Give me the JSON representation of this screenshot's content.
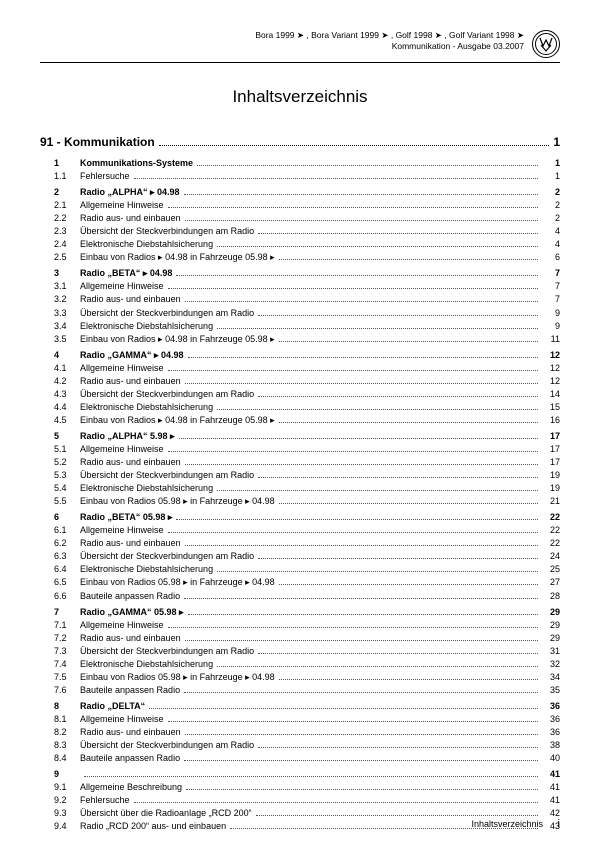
{
  "header": {
    "line1": "Bora 1999 ➤ , Bora Variant 1999 ➤ , Golf 1998 ➤ , Golf Variant 1998 ➤",
    "line2": "Kommunikation - Ausgabe 03.2007",
    "logo_text": "VW"
  },
  "title": "Inhaltsverzeichnis",
  "section": {
    "num": "91 -",
    "label": "Kommunikation",
    "page": "1"
  },
  "rows": [
    {
      "n": "1",
      "l": "Kommunikations-Systeme",
      "p": "1",
      "b": true
    },
    {
      "n": "1.1",
      "l": "Fehlersuche",
      "p": "1"
    },
    {
      "sp": true
    },
    {
      "n": "2",
      "l": "Radio „ALPHA“ ▸ 04.98",
      "p": "2",
      "b": true
    },
    {
      "n": "2.1",
      "l": "Allgemeine Hinweise",
      "p": "2"
    },
    {
      "n": "2.2",
      "l": "Radio aus- und einbauen",
      "p": "2"
    },
    {
      "n": "2.3",
      "l": "Übersicht der Steckverbindungen am Radio",
      "p": "4"
    },
    {
      "n": "2.4",
      "l": "Elektronische Diebstahlsicherung",
      "p": "4"
    },
    {
      "n": "2.5",
      "l": "Einbau von Radios ▸ 04.98 in Fahrzeuge 05.98 ▸",
      "p": "6"
    },
    {
      "sp": true
    },
    {
      "n": "3",
      "l": "Radio „BETA“ ▸ 04.98",
      "p": "7",
      "b": true
    },
    {
      "n": "3.1",
      "l": "Allgemeine Hinweise",
      "p": "7"
    },
    {
      "n": "3.2",
      "l": "Radio aus- und einbauen",
      "p": "7"
    },
    {
      "n": "3.3",
      "l": "Übersicht der Steckverbindungen am Radio",
      "p": "9"
    },
    {
      "n": "3.4",
      "l": "Elektronische Diebstahlsicherung",
      "p": "9"
    },
    {
      "n": "3.5",
      "l": "Einbau von Radios ▸ 04.98 in Fahrzeuge 05.98 ▸",
      "p": "11"
    },
    {
      "sp": true
    },
    {
      "n": "4",
      "l": "Radio „GAMMA“ ▸ 04.98",
      "p": "12",
      "b": true
    },
    {
      "n": "4.1",
      "l": "Allgemeine Hinweise",
      "p": "12"
    },
    {
      "n": "4.2",
      "l": "Radio aus- und einbauen",
      "p": "12"
    },
    {
      "n": "4.3",
      "l": "Übersicht der Steckverbindungen am Radio",
      "p": "14"
    },
    {
      "n": "4.4",
      "l": "Elektronische Diebstahlsicherung",
      "p": "15"
    },
    {
      "n": "4.5",
      "l": "Einbau von Radios ▸ 04.98 in Fahrzeuge 05.98 ▸",
      "p": "16"
    },
    {
      "sp": true
    },
    {
      "n": "5",
      "l": "Radio „ALPHA“ 5.98 ▸",
      "p": "17",
      "b": true
    },
    {
      "n": "5.1",
      "l": "Allgemeine Hinweise",
      "p": "17"
    },
    {
      "n": "5.2",
      "l": "Radio aus- und einbauen",
      "p": "17"
    },
    {
      "n": "5.3",
      "l": "Übersicht der Steckverbindungen am Radio",
      "p": "19"
    },
    {
      "n": "5.4",
      "l": "Elektronische Diebstahlsicherung",
      "p": "19"
    },
    {
      "n": "5.5",
      "l": "Einbau von Radios 05.98 ▸ in Fahrzeuge ▸ 04.98",
      "p": "21"
    },
    {
      "sp": true
    },
    {
      "n": "6",
      "l": "Radio „BETA“ 05.98 ▸",
      "p": "22",
      "b": true
    },
    {
      "n": "6.1",
      "l": "Allgemeine Hinweise",
      "p": "22"
    },
    {
      "n": "6.2",
      "l": "Radio aus- und einbauen",
      "p": "22"
    },
    {
      "n": "6.3",
      "l": "Übersicht der Steckverbindungen am Radio",
      "p": "24"
    },
    {
      "n": "6.4",
      "l": "Elektronische Diebstahlsicherung",
      "p": "25"
    },
    {
      "n": "6.5",
      "l": "Einbau von Radios 05.98 ▸ in Fahrzeuge ▸ 04.98",
      "p": "27"
    },
    {
      "n": "6.6",
      "l": "Bauteile anpassen Radio",
      "p": "28"
    },
    {
      "sp": true
    },
    {
      "n": "7",
      "l": "Radio „GAMMA“ 05.98 ▸",
      "p": "29",
      "b": true
    },
    {
      "n": "7.1",
      "l": "Allgemeine Hinweise",
      "p": "29"
    },
    {
      "n": "7.2",
      "l": "Radio aus- und einbauen",
      "p": "29"
    },
    {
      "n": "7.3",
      "l": "Übersicht der Steckverbindungen am Radio",
      "p": "31"
    },
    {
      "n": "7.4",
      "l": "Elektronische Diebstahlsicherung",
      "p": "32"
    },
    {
      "n": "7.5",
      "l": "Einbau von Radios 05.98 ▸ in Fahrzeuge ▸ 04.98",
      "p": "34"
    },
    {
      "n": "7.6",
      "l": "Bauteile anpassen Radio",
      "p": "35"
    },
    {
      "sp": true
    },
    {
      "n": "8",
      "l": "Radio „DELTA“",
      "p": "36",
      "b": true
    },
    {
      "n": "8.1",
      "l": "Allgemeine Hinweise",
      "p": "36"
    },
    {
      "n": "8.2",
      "l": "Radio aus- und einbauen",
      "p": "36"
    },
    {
      "n": "8.3",
      "l": "Übersicht der Steckverbindungen am Radio",
      "p": "38"
    },
    {
      "n": "8.4",
      "l": "Bauteile anpassen Radio",
      "p": "40"
    },
    {
      "sp": true
    },
    {
      "n": "9",
      "l": "",
      "p": "41",
      "b": true
    },
    {
      "n": "9.1",
      "l": "Allgemeine Beschreibung",
      "p": "41"
    },
    {
      "n": "9.2",
      "l": "Fehlersuche",
      "p": "41"
    },
    {
      "n": "9.3",
      "l": "Übersicht über die Radioanlage „RCD 200“",
      "p": "42"
    },
    {
      "n": "9.4",
      "l": "Radio „RCD 200“ aus- und einbauen",
      "p": "43"
    }
  ],
  "footer": {
    "label": "Inhaltsverzeichnis",
    "page": "i"
  }
}
